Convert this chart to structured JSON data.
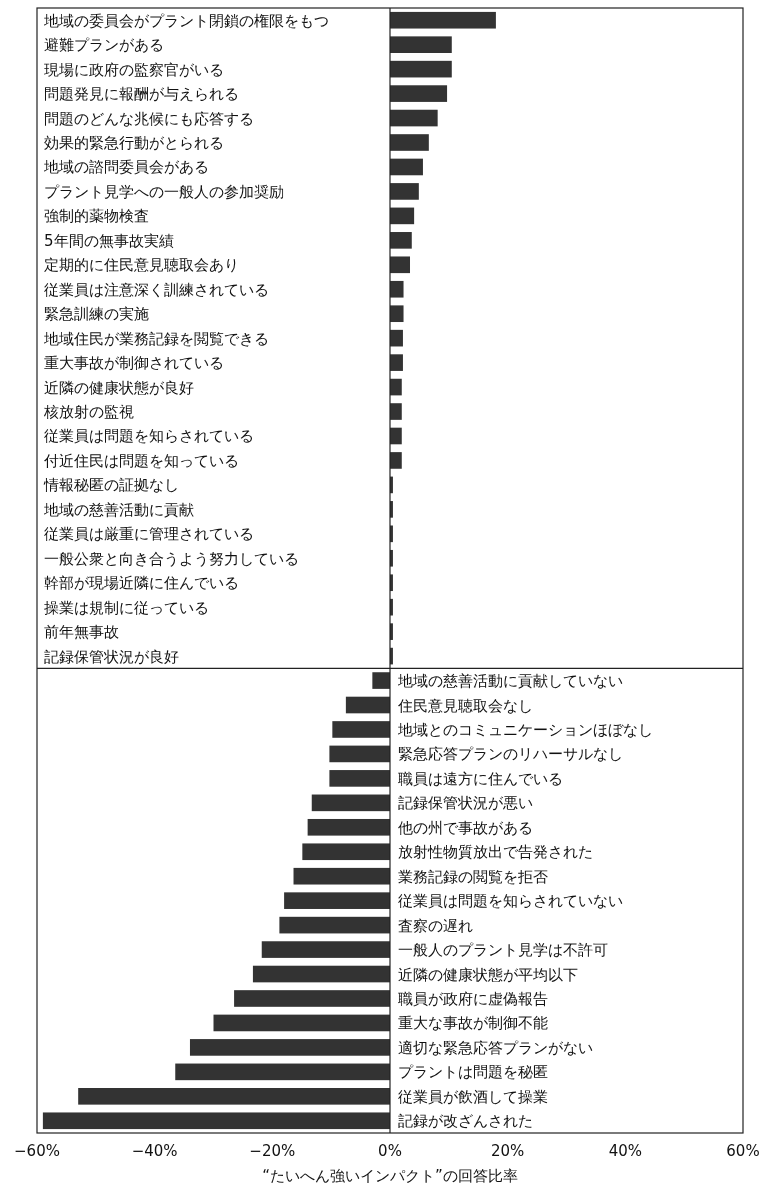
{
  "chart_data": {
    "type": "bar",
    "orientation": "horizontal",
    "xlabel": "“たいへん強いインパクト”の回答比率",
    "categories": [
      "地域の委員会がプラント閉鎖の権限をもつ",
      "避難プランがある",
      "現場に政府の監察官がいる",
      "問題発見に報酬が与えられる",
      "問題のどんな兆候にも応答する",
      "効果的緊急行動がとられる",
      "地域の諮問委員会がある",
      "プラント見学への一般人の参加奨励",
      "強制的薬物検査",
      "5年間の無事故実績",
      "定期的に住民意見聴取会あり",
      "従業員は注意深く訓練されている",
      "緊急訓練の実施",
      "地域住民が業務記録を閲覧できる",
      "重大事故が制御されている",
      "近隣の健康状態が良好",
      "核放射の監視",
      "従業員は問題を知らされている",
      "付近住民は問題を知っている",
      "情報秘匿の証拠なし",
      "地域の慈善活動に貢献",
      "従業員は厳重に管理されている",
      "一般公衆と向き合うよう努力している",
      "幹部が現場近隣に住んでいる",
      "操業は規制に従っている",
      "前年無事故",
      "記録保管状況が良好",
      "地域の慈善活動に貢献していない",
      "住民意見聴取会なし",
      "地域とのコミュニケーションほぼなし",
      "緊急応答プランのリハーサルなし",
      "職員は遠方に住んでいる",
      "記録保管状況が悪い",
      "他の州で事故がある",
      "放射性物質放出で告発された",
      "業務記録の閲覧を拒否",
      "従業員は問題を知らされていない",
      "査察の遅れ",
      "一般人のプラント見学は不許可",
      "近隣の健康状態が平均以下",
      "職員が政府に虚偽報告",
      "重大な事故が制御不能",
      "適切な緊急応答プランがない",
      "プラントは問題を秘匿",
      "従業員が飲酒して操業",
      "記録が改ざんされた"
    ],
    "values": [
      18,
      10.5,
      10.5,
      9.7,
      8.1,
      6.6,
      5.6,
      4.9,
      4.1,
      3.7,
      3.4,
      2.3,
      2.3,
      2.2,
      2.2,
      2,
      2,
      2,
      2,
      0.5,
      0.5,
      0.5,
      0.5,
      0.5,
      0.5,
      0.5,
      0.5,
      -3,
      -7.5,
      -9.8,
      -10.3,
      -10.3,
      -13.3,
      -14,
      -14.9,
      -16.4,
      -18,
      -18.8,
      -21.8,
      -23.3,
      -26.5,
      -30,
      -34,
      -36.5,
      -53,
      -59
    ],
    "color": "#333333",
    "xlim": [
      -60,
      60
    ],
    "xticks": [
      {
        "value": -60,
        "label": "−60%"
      },
      {
        "value": -40,
        "label": "−40%"
      },
      {
        "value": -20,
        "label": "−20%"
      },
      {
        "value": 0,
        "label": "0%"
      },
      {
        "value": 20,
        "label": "20%"
      },
      {
        "value": 40,
        "label": "40%"
      },
      {
        "value": 60,
        "label": "60%"
      }
    ]
  }
}
